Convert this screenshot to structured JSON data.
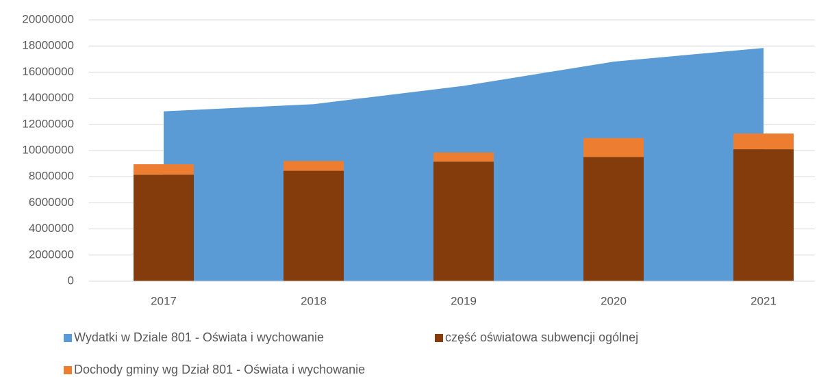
{
  "chart_data": {
    "type": "combo",
    "categories": [
      "2017",
      "2018",
      "2019",
      "2020",
      "2021"
    ],
    "series": [
      {
        "name": "Wydatki w Dziale 801 - Oświata i wychowanie",
        "type": "area",
        "color": "#5b9bd5",
        "values": [
          13000000,
          13550000,
          14950000,
          16800000,
          17850000
        ]
      },
      {
        "name": "część oświatowa subwencji ogólnej",
        "type": "bar",
        "stack": true,
        "color": "#843c0c",
        "values": [
          8150000,
          8450000,
          9150000,
          9500000,
          10100000
        ]
      },
      {
        "name": "Dochody gminy wg Dział 801 - Oświata i wychowanie",
        "type": "bar",
        "stack": true,
        "color": "#ed7d31",
        "values": [
          800000,
          750000,
          700000,
          1450000,
          1200000
        ]
      }
    ],
    "ylim": [
      0,
      20000000
    ],
    "yticks": [
      0,
      2000000,
      4000000,
      6000000,
      8000000,
      10000000,
      12000000,
      14000000,
      16000000,
      18000000,
      20000000
    ],
    "grid": true,
    "legend": "bottom"
  }
}
